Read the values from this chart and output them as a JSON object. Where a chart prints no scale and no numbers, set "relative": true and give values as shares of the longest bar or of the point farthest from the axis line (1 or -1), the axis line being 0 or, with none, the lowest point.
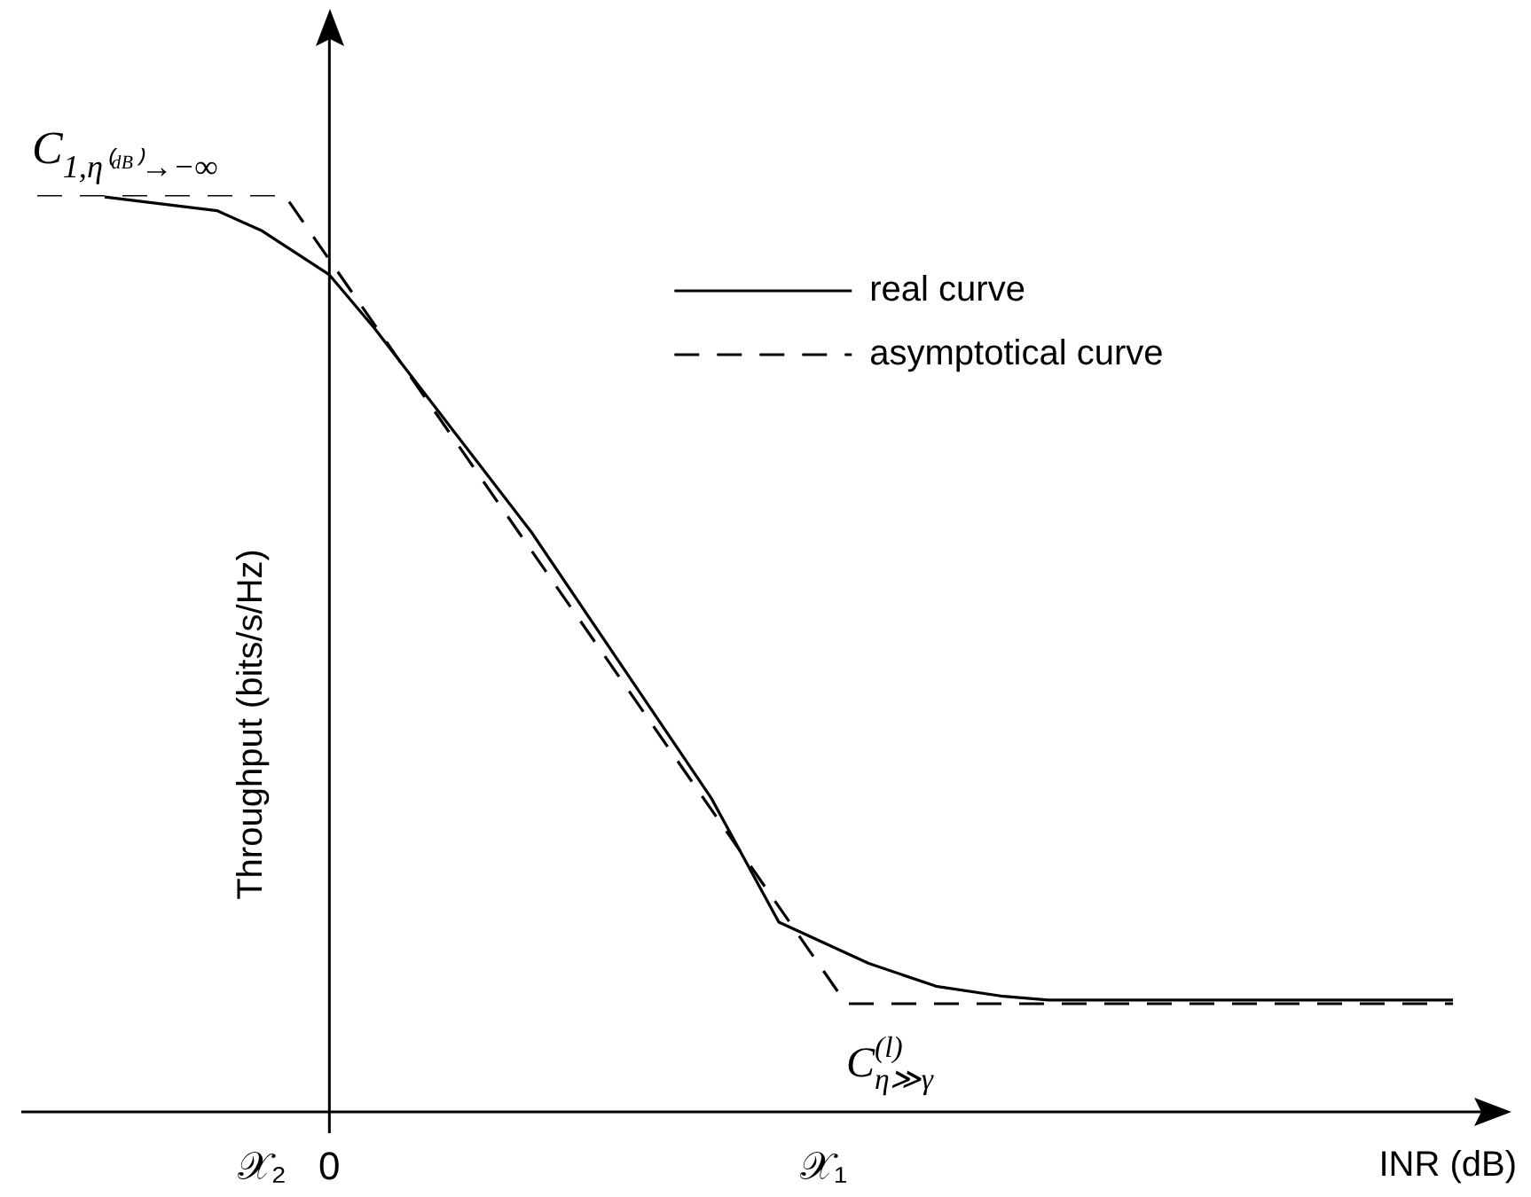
{
  "chart_data": {
    "type": "line",
    "relative": true,
    "xlabel": "INR (dB)",
    "ylabel": "Throughput (bits/s/Hz)",
    "legend": "top right",
    "marker": "none",
    "categories": [
      null,
      null,
      null,
      null,
      null,
      null,
      null,
      null,
      null,
      null,
      "𝒳₂",
      null,
      null,
      "0",
      null,
      null,
      null,
      null,
      null,
      null,
      null,
      null,
      null,
      null,
      null,
      null,
      null,
      null,
      null,
      null,
      null,
      null,
      null,
      null,
      null,
      "𝒳₁",
      null,
      null,
      null,
      null,
      null,
      null,
      null,
      null,
      null,
      null,
      null,
      null,
      null,
      null,
      null,
      null,
      null,
      null,
      null,
      null,
      null,
      null,
      null,
      null,
      null,
      null,
      null,
      null
    ],
    "series": [
      {
        "name": "real curve",
        "color": "#000000",
        "line_style": "solid",
        "values": [
          null,
          null,
          null,
          0.998,
          null,
          null,
          null,
          null,
          0.983,
          null,
          0.961,
          null,
          null,
          0.913,
          null,
          0.855,
          null,
          null,
          null,
          null,
          null,
          null,
          0.632,
          null,
          null,
          null,
          null,
          null,
          null,
          null,
          0.342,
          null,
          null,
          0.207,
          null,
          null,
          null,
          0.162,
          null,
          null,
          0.137,
          null,
          null,
          0.126,
          null,
          0.122,
          null,
          null,
          null,
          null,
          null,
          null,
          null,
          null,
          null,
          null,
          null,
          null,
          null,
          null,
          null,
          null,
          null,
          0.122
        ]
      },
      {
        "name": "asymptotical curve",
        "color": "#000000",
        "line_style": "dashed",
        "values": [
          1,
          null,
          null,
          null,
          null,
          null,
          null,
          null,
          null,
          null,
          null,
          1,
          null,
          null,
          null,
          null,
          null,
          null,
          null,
          null,
          null,
          null,
          null,
          null,
          null,
          null,
          null,
          null,
          null,
          null,
          null,
          null,
          null,
          null,
          null,
          null,
          0.118,
          null,
          null,
          null,
          null,
          null,
          null,
          null,
          null,
          null,
          null,
          null,
          null,
          null,
          null,
          null,
          null,
          null,
          null,
          null,
          null,
          null,
          null,
          null,
          null,
          null,
          null,
          0.118
        ]
      }
    ],
    "annotations": [
      "C$_{1,η⁽ᵈᴮ⁾→−∞}$",
      "C$^{(l)}$$_{η≫γ}$"
    ]
  }
}
